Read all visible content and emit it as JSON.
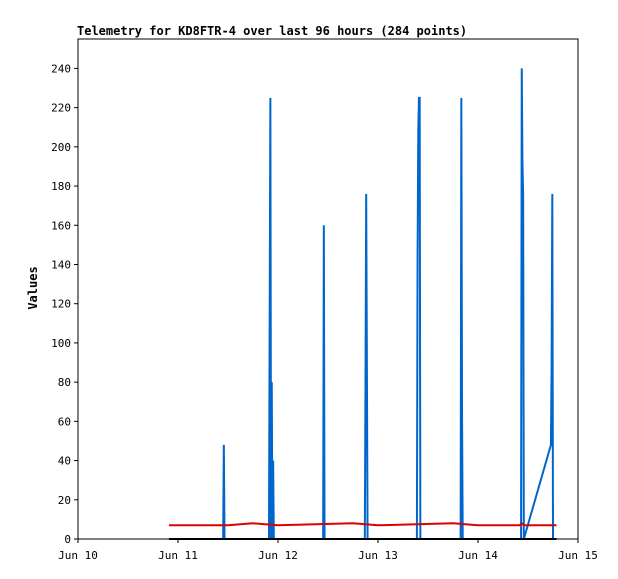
{
  "chart_data": {
    "type": "line",
    "title": "Telemetry for KD8FTR-4 over last 96 hours (284 points)",
    "xlabel": "",
    "ylabel": "Values",
    "xlim": [
      "Jun 10",
      "Jun 15"
    ],
    "ylim": [
      0,
      255
    ],
    "x_ticks": [
      "Jun 10",
      "Jun 11",
      "Jun 12",
      "Jun 13",
      "Jun 14",
      "Jun 15"
    ],
    "y_ticks": [
      0,
      20,
      40,
      60,
      80,
      100,
      120,
      140,
      160,
      180,
      200,
      220,
      240
    ],
    "grid": false,
    "series": [
      {
        "color": "#0066cc",
        "points": [
          [
            "Jun 10 21:50",
            0
          ],
          [
            "Jun 11 10:50",
            0
          ],
          [
            "Jun 11 11:00",
            48
          ],
          [
            "Jun 11 11:10",
            0
          ],
          [
            "Jun 11 21:50",
            0
          ],
          [
            "Jun 11 22:00",
            112
          ],
          [
            "Jun 11 22:10",
            225
          ],
          [
            "Jun 11 22:20",
            0
          ],
          [
            "Jun 11 22:30",
            80
          ],
          [
            "Jun 11 22:40",
            0
          ],
          [
            "Jun 11 22:50",
            40
          ],
          [
            "Jun 11 23:00",
            0
          ],
          [
            "Jun 12 10:50",
            0
          ],
          [
            "Jun 12 11:00",
            160
          ],
          [
            "Jun 12 11:10",
            0
          ],
          [
            "Jun 12 20:50",
            0
          ],
          [
            "Jun 12 21:00",
            80
          ],
          [
            "Jun 12 21:10",
            176
          ],
          [
            "Jun 12 21:20",
            88
          ],
          [
            "Jun 12 21:30",
            0
          ],
          [
            "Jun 13 09:20",
            0
          ],
          [
            "Jun 13 09:30",
            144
          ],
          [
            "Jun 13 09:40",
            208
          ],
          [
            "Jun 13 09:50",
            225
          ],
          [
            "Jun 13 10:00",
            225
          ],
          [
            "Jun 13 10:10",
            0
          ],
          [
            "Jun 13 19:50",
            0
          ],
          [
            "Jun 13 20:00",
            225
          ],
          [
            "Jun 13 20:10",
            64
          ],
          [
            "Jun 13 20:20",
            0
          ],
          [
            "Jun 14 10:20",
            0
          ],
          [
            "Jun 14 10:30",
            240
          ],
          [
            "Jun 14 10:40",
            192
          ],
          [
            "Jun 14 10:50",
            176
          ],
          [
            "Jun 14 11:00",
            0
          ],
          [
            "Jun 14 17:30",
            48
          ],
          [
            "Jun 14 17:40",
            88
          ],
          [
            "Jun 14 17:50",
            176
          ],
          [
            "Jun 14 18:00",
            0
          ],
          [
            "Jun 14 18:50",
            0
          ]
        ]
      },
      {
        "color": "#dd0000",
        "points": [
          [
            "Jun 10 21:50",
            7
          ],
          [
            "Jun 11 12:00",
            7
          ],
          [
            "Jun 11 18:00",
            8
          ],
          [
            "Jun 12 00:00",
            7
          ],
          [
            "Jun 12 18:00",
            8
          ],
          [
            "Jun 13 00:00",
            7
          ],
          [
            "Jun 13 18:00",
            8
          ],
          [
            "Jun 14 00:00",
            7
          ],
          [
            "Jun 14 10:00",
            7
          ],
          [
            "Jun 14 10:30",
            8
          ],
          [
            "Jun 14 11:00",
            7
          ],
          [
            "Jun 14 18:50",
            7
          ]
        ]
      },
      {
        "color": "#000000",
        "points": [
          [
            "Jun 10 21:50",
            0
          ],
          [
            "Jun 14 18:50",
            0
          ]
        ]
      }
    ]
  }
}
